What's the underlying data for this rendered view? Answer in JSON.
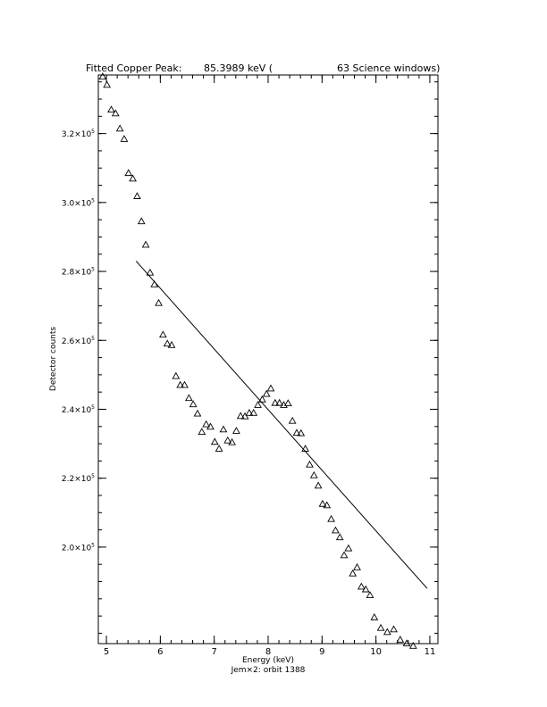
{
  "chart_data": {
    "type": "scatter",
    "title": {
      "prefix": "Fitted Copper Peak:",
      "value": "85.3989 keV (",
      "suffix": "63 Science windows)"
    },
    "xlabel": "Energy (keV)",
    "ylabel": "Detector counts",
    "subtitle": "Jem×2: orbit 1388",
    "xlim": [
      4.85,
      11.15
    ],
    "ylim": [
      172000,
      337000
    ],
    "x_ticks": [
      5,
      6,
      7,
      8,
      9,
      10,
      11
    ],
    "x_tick_labels": [
      "5",
      "6",
      "7",
      "8",
      "9",
      "10",
      "11"
    ],
    "y_ticks": [
      200000,
      220000,
      240000,
      260000,
      280000,
      300000,
      320000
    ],
    "y_tick_labels": [
      {
        "mantissa": "2.0×10",
        "exp": "5"
      },
      {
        "mantissa": "2.2×10",
        "exp": "5"
      },
      {
        "mantissa": "2.4×10",
        "exp": "5"
      },
      {
        "mantissa": "2.6×10",
        "exp": "5"
      },
      {
        "mantissa": "2.8×10",
        "exp": "5"
      },
      {
        "mantissa": "3.0×10",
        "exp": "5"
      },
      {
        "mantissa": "3.2×10",
        "exp": "5"
      }
    ],
    "x_minor_step": 0.2,
    "y_minor_step": 5000,
    "grid": false,
    "series": [
      {
        "marker": "triangle-open",
        "x": [
          4.93,
          5.01,
          5.09,
          5.17,
          5.25,
          5.33,
          5.41,
          5.49,
          5.57,
          5.65,
          5.73,
          5.81,
          5.89,
          5.97,
          6.05,
          6.13,
          6.21,
          6.29,
          6.37,
          6.45,
          6.53,
          6.61,
          6.69,
          6.77,
          6.85,
          6.93,
          7.01,
          7.09,
          7.17,
          7.25,
          7.33,
          7.41,
          7.49,
          7.57,
          7.65,
          7.73,
          7.81,
          7.89,
          7.97,
          8.05,
          8.13,
          8.21,
          8.29,
          8.37,
          8.45,
          8.53,
          8.61,
          8.69,
          8.77,
          8.85,
          8.93,
          9.01,
          9.09,
          9.17,
          9.25,
          9.33,
          9.41,
          9.49,
          9.57,
          9.65,
          9.73,
          9.81,
          9.89,
          9.97,
          10.09,
          10.21,
          10.33,
          10.45,
          10.57,
          10.69,
          10.81,
          10.93
        ],
        "y": [
          336500,
          334100,
          326900,
          325800,
          321400,
          318400,
          308500,
          306900,
          301800,
          294500,
          287700,
          279600,
          276200,
          270800,
          261600,
          259000,
          258600,
          249600,
          247000,
          247000,
          243200,
          241400,
          238700,
          233400,
          235600,
          234900,
          230500,
          228500,
          234100,
          230900,
          230400,
          233700,
          238000,
          237900,
          238900,
          238900,
          241200,
          242800,
          244400,
          246000,
          241800,
          241800,
          241200,
          241700,
          236600,
          233100,
          233000,
          228500,
          223900,
          220800,
          217800,
          212500,
          212100,
          208100,
          204800,
          202800,
          197600,
          199600,
          192300,
          194100,
          188500,
          187700,
          186000,
          179600,
          176500,
          175300,
          176100,
          173100,
          172000,
          171300,
          166600,
          166000
        ]
      },
      {
        "marker": "line",
        "x": [
          5.55,
          10.95
        ],
        "y": [
          283000,
          188000
        ]
      }
    ]
  }
}
